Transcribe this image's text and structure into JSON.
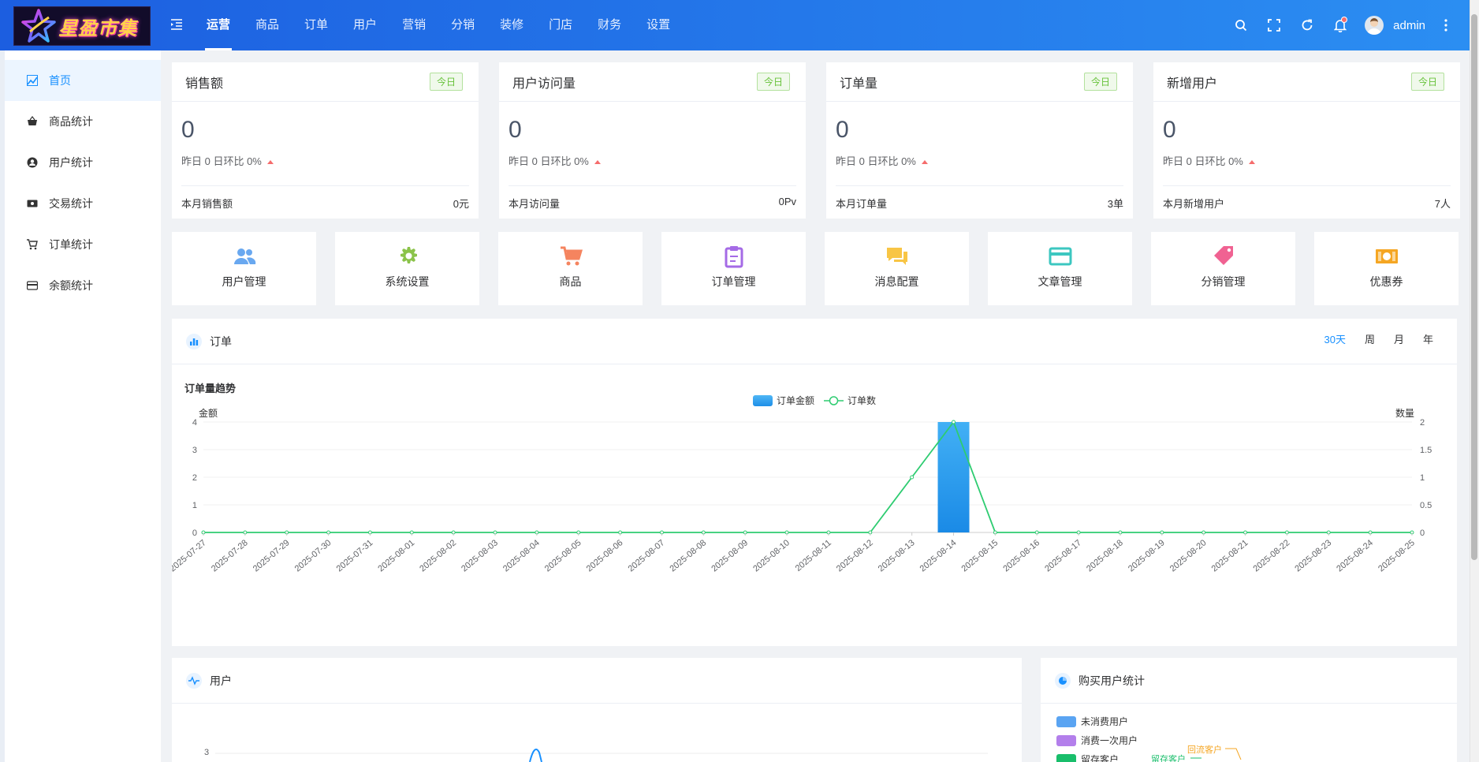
{
  "app": {
    "logo_text": "星盈市集",
    "user_name": "admin"
  },
  "nav": {
    "items": [
      "运营",
      "商品",
      "订单",
      "用户",
      "营销",
      "分销",
      "装修",
      "门店",
      "财务",
      "设置"
    ],
    "active": "运营"
  },
  "sidebar": {
    "items": [
      "首页",
      "商品统计",
      "用户统计",
      "交易统计",
      "订单统计",
      "余额统计"
    ],
    "active": "首页"
  },
  "stats": [
    {
      "title": "销售额",
      "tag": "今日",
      "value": "0",
      "compare": "昨日 0  日环比 0%",
      "foot_label": "本月销售额",
      "foot_value": "0元"
    },
    {
      "title": "用户访问量",
      "tag": "今日",
      "value": "0",
      "compare": "昨日 0  日环比 0%",
      "foot_label": "本月访问量",
      "foot_value": "0Pv"
    },
    {
      "title": "订单量",
      "tag": "今日",
      "value": "0",
      "compare": "昨日 0  日环比 0%",
      "foot_label": "本月订单量",
      "foot_value": "3单"
    },
    {
      "title": "新增用户",
      "tag": "今日",
      "value": "0",
      "compare": "昨日 0  日环比 0%",
      "foot_label": "本月新增用户",
      "foot_value": "7人"
    }
  ],
  "quick_links": [
    {
      "label": "用户管理",
      "icon": "users-icon",
      "color": "#69a8f0"
    },
    {
      "label": "系统设置",
      "icon": "gear-icon",
      "color": "#8bc34a"
    },
    {
      "label": "商品",
      "icon": "cart-icon",
      "color": "#f5845f"
    },
    {
      "label": "订单管理",
      "icon": "clipboard-icon",
      "color": "#a56be6"
    },
    {
      "label": "消息配置",
      "icon": "chat-icon",
      "color": "#f8c545"
    },
    {
      "label": "文章管理",
      "icon": "card-icon",
      "color": "#3cc7c0"
    },
    {
      "label": "分销管理",
      "icon": "tag-icon",
      "color": "#f06292"
    },
    {
      "label": "优惠券",
      "icon": "coupon-icon",
      "color": "#f5a623"
    }
  ],
  "order_panel": {
    "title": "订单",
    "ranges": [
      "30天",
      "周",
      "月",
      "年"
    ],
    "active_range": "30天"
  },
  "user_panel": {
    "title": "用户",
    "y_tick": "3"
  },
  "buy_panel": {
    "title": "购买用户统计",
    "legend": [
      {
        "label": "未消费用户",
        "color": "#5aa4f2"
      },
      {
        "label": "消费一次用户",
        "color": "#b37feb"
      },
      {
        "label": "留存客户",
        "color": "#19be6b"
      }
    ],
    "labels": {
      "retained": "留存客户",
      "returning": "回流客户"
    }
  },
  "chart_data": {
    "type": "bar",
    "title": "订单量趋势",
    "legend_position": "top-center",
    "y_left_label": "金额",
    "y_right_label": "数量",
    "y_left_ticks": [
      "0",
      "1",
      "2",
      "3",
      "4"
    ],
    "y_right_ticks": [
      "0",
      "0.5",
      "1",
      "1.5",
      "2"
    ],
    "ylim_left": [
      0,
      4
    ],
    "ylim_right": [
      0,
      2
    ],
    "categories": [
      "2025-07-27",
      "2025-07-28",
      "2025-07-29",
      "2025-07-30",
      "2025-07-31",
      "2025-08-01",
      "2025-08-02",
      "2025-08-03",
      "2025-08-04",
      "2025-08-05",
      "2025-08-06",
      "2025-08-07",
      "2025-08-08",
      "2025-08-09",
      "2025-08-10",
      "2025-08-11",
      "2025-08-12",
      "2025-08-13",
      "2025-08-14",
      "2025-08-15",
      "2025-08-16",
      "2025-08-17",
      "2025-08-18",
      "2025-08-19",
      "2025-08-20",
      "2025-08-21",
      "2025-08-22",
      "2025-08-23",
      "2025-08-24",
      "2025-08-25"
    ],
    "series": [
      {
        "name": "订单金额",
        "type": "bar",
        "axis": "left",
        "color": "#2196f3",
        "values": [
          0,
          0,
          0,
          0,
          0,
          0,
          0,
          0,
          0,
          0,
          0,
          0,
          0,
          0,
          0,
          0,
          0,
          0,
          4,
          0,
          0,
          0,
          0,
          0,
          0,
          0,
          0,
          0,
          0,
          0
        ]
      },
      {
        "name": "订单数",
        "type": "line",
        "axis": "right",
        "color": "#2ecc71",
        "values": [
          0,
          0,
          0,
          0,
          0,
          0,
          0,
          0,
          0,
          0,
          0,
          0,
          0,
          0,
          0,
          0,
          0,
          1,
          2,
          0,
          0,
          0,
          0,
          0,
          0,
          0,
          0,
          0,
          0,
          0
        ]
      }
    ],
    "grid": true
  }
}
